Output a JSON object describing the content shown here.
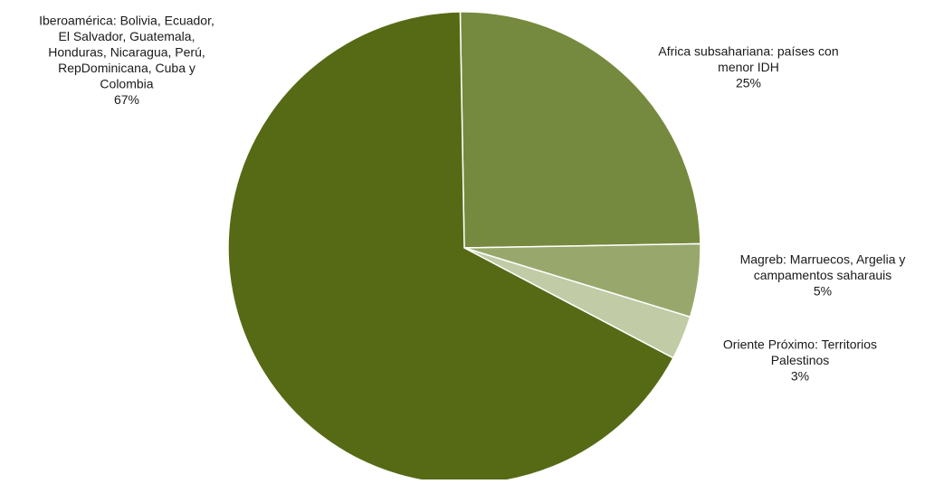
{
  "chart_data": {
    "type": "pie",
    "title": "",
    "slices": [
      {
        "label_lines": [
          "Africa subsahariana: países con",
          "menor IDH"
        ],
        "value": 25,
        "value_label": "25%",
        "color": "#758a3e"
      },
      {
        "label_lines": [
          "Magreb: Marruecos, Argelia y",
          "campamentos saharauis"
        ],
        "value": 5,
        "value_label": "5%",
        "color": "#98a86c"
      },
      {
        "label_lines": [
          "Oriente Próximo: Territorios",
          "Palestinos"
        ],
        "value": 3,
        "value_label": "3%",
        "color": "#c1cba6"
      },
      {
        "label_lines": [
          "Iberoamérica: Bolivia, Ecuador,",
          "El Salvador, Guatemala,",
          "Honduras, Nicaragua, Perú,",
          "RepDominicana, Cuba y",
          "Colombia"
        ],
        "value": 67,
        "value_label": "67%",
        "color": "#566a16"
      }
    ]
  }
}
